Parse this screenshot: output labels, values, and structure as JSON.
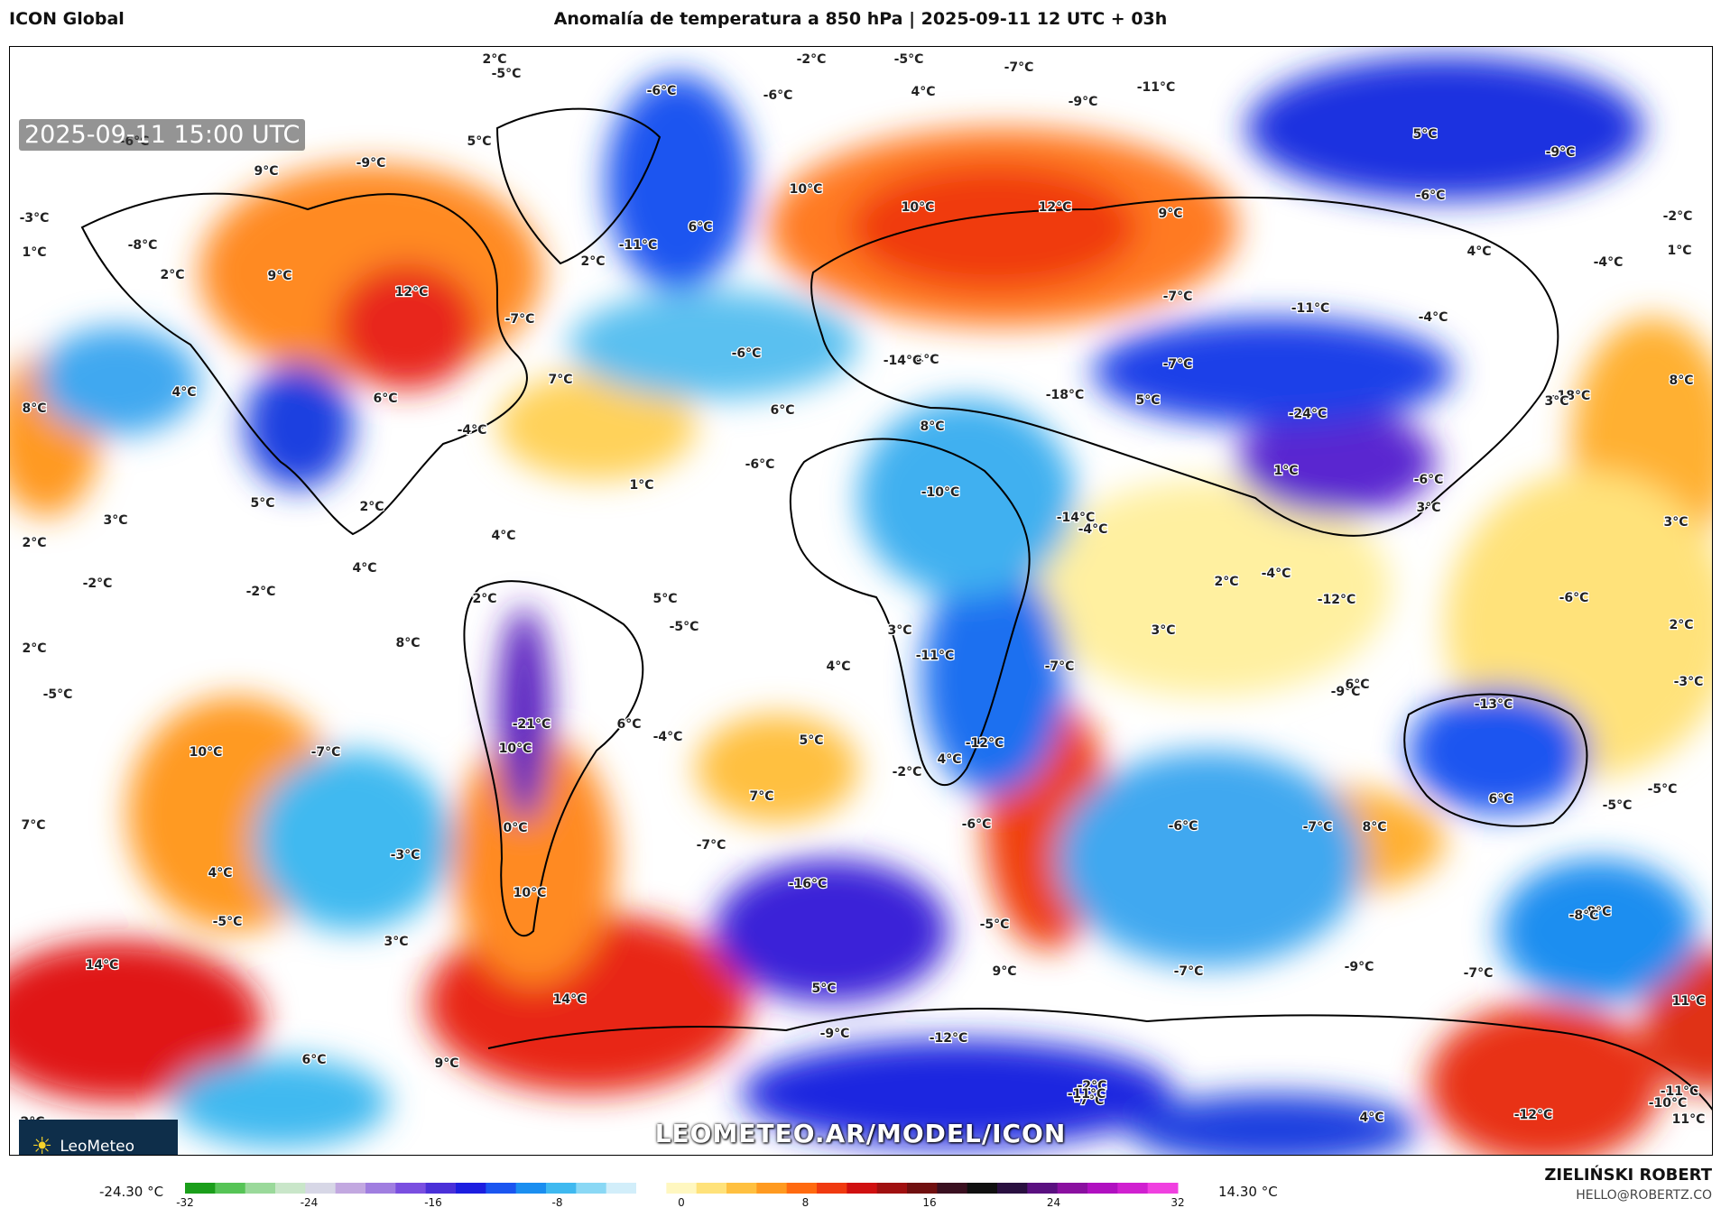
{
  "header": {
    "model": "ICON Global",
    "title": "Anomalía de temperatura a 850 hPa | 2025-09-11 12 UTC + 03h"
  },
  "map": {
    "valid_time": "2025-09-11 15:00 UTC",
    "watermark": "LEOMETEO.AR/MODEL/ICON",
    "logo": "LeoMeteo",
    "labels": [
      {
        "t": "2°C"
      },
      {
        "t": "-2°C"
      },
      {
        "t": "-5°C"
      },
      {
        "t": "-7°C"
      },
      {
        "t": "-11°C"
      },
      {
        "t": "-5°C"
      },
      {
        "t": "-6°C"
      },
      {
        "t": "-6°C"
      },
      {
        "t": "4°C"
      },
      {
        "t": "-9°C"
      },
      {
        "t": "5°C"
      },
      {
        "t": "-6°C"
      },
      {
        "t": "5°C"
      },
      {
        "t": "-9°C"
      },
      {
        "t": "9°C"
      },
      {
        "t": "-9°C"
      },
      {
        "t": "10°C"
      },
      {
        "t": "10°C"
      },
      {
        "t": "12°C"
      },
      {
        "t": "9°C"
      },
      {
        "t": "-6°C"
      },
      {
        "t": "-2°C"
      },
      {
        "t": "-3°C"
      },
      {
        "t": "1°C"
      },
      {
        "t": "-8°C"
      },
      {
        "t": "2°C"
      },
      {
        "t": "9°C"
      },
      {
        "t": "12°C"
      },
      {
        "t": "6°C"
      },
      {
        "t": "-11°C"
      },
      {
        "t": "2°C"
      },
      {
        "t": "4°C"
      },
      {
        "t": "-4°C"
      },
      {
        "t": "1°C"
      },
      {
        "t": "-7°C"
      },
      {
        "t": "-7°C"
      },
      {
        "t": "-11°C"
      },
      {
        "t": "-4°C"
      },
      {
        "t": "-6°C"
      },
      {
        "t": "4°C"
      },
      {
        "t": "-7°C"
      },
      {
        "t": "-14°C"
      },
      {
        "t": "7°C"
      },
      {
        "t": "8°C"
      },
      {
        "t": "8°C"
      },
      {
        "t": "4°C"
      },
      {
        "t": "-18°C"
      },
      {
        "t": "6°C"
      },
      {
        "t": "6°C"
      },
      {
        "t": "-18°C"
      },
      {
        "t": "5°C"
      },
      {
        "t": "-24°C"
      },
      {
        "t": "3°C"
      },
      {
        "t": "-4°C"
      },
      {
        "t": "8°C"
      },
      {
        "t": "-6°C"
      },
      {
        "t": "1°C"
      },
      {
        "t": "-10°C"
      },
      {
        "t": "-14°C"
      },
      {
        "t": "1°C"
      },
      {
        "t": "-6°C"
      },
      {
        "t": "5°C"
      },
      {
        "t": "2°C"
      },
      {
        "t": "3°C"
      },
      {
        "t": "4°C"
      },
      {
        "t": "-4°C"
      },
      {
        "t": "3°C"
      },
      {
        "t": "3°C"
      },
      {
        "t": "2°C"
      },
      {
        "t": "-2°C"
      },
      {
        "t": "4°C"
      },
      {
        "t": "2°C"
      },
      {
        "t": "2°C"
      },
      {
        "t": "-2°C"
      },
      {
        "t": "-4°C"
      },
      {
        "t": "-12°C"
      },
      {
        "t": "5°C"
      },
      {
        "t": "-5°C"
      },
      {
        "t": "3°C"
      },
      {
        "t": "3°C"
      },
      {
        "t": "-6°C"
      },
      {
        "t": "2°C"
      },
      {
        "t": "2°C"
      },
      {
        "t": "8°C"
      },
      {
        "t": "-11°C"
      },
      {
        "t": "-7°C"
      },
      {
        "t": "-9°C"
      },
      {
        "t": "6°C"
      },
      {
        "t": "4°C"
      },
      {
        "t": "-3°C"
      },
      {
        "t": "-5°C"
      },
      {
        "t": "-21°C"
      },
      {
        "t": "6°C"
      },
      {
        "t": "-4°C"
      },
      {
        "t": "-12°C"
      },
      {
        "t": "-13°C"
      },
      {
        "t": "5°C"
      },
      {
        "t": "10°C"
      },
      {
        "t": "-7°C"
      },
      {
        "t": "10°C"
      },
      {
        "t": "4°C"
      },
      {
        "t": "-2°C"
      },
      {
        "t": "7°C"
      },
      {
        "t": "-5°C"
      },
      {
        "t": "-5°C"
      },
      {
        "t": "7°C"
      },
      {
        "t": "6°C"
      },
      {
        "t": "0°C"
      },
      {
        "t": "-6°C"
      },
      {
        "t": "-6°C"
      },
      {
        "t": "-7°C"
      },
      {
        "t": "8°C"
      },
      {
        "t": "-3°C"
      },
      {
        "t": "-7°C"
      },
      {
        "t": "-16°C"
      },
      {
        "t": "4°C"
      },
      {
        "t": "10°C"
      },
      {
        "t": "-8°C"
      },
      {
        "t": "-5°C"
      },
      {
        "t": "-5°C"
      },
      {
        "t": "3°C"
      },
      {
        "t": "9°C"
      },
      {
        "t": "-7°C"
      },
      {
        "t": "-9°C"
      },
      {
        "t": "-7°C"
      },
      {
        "t": "14°C"
      },
      {
        "t": "5°C"
      },
      {
        "t": "14°C"
      },
      {
        "t": "11°C"
      },
      {
        "t": "-9°C"
      },
      {
        "t": "-12°C"
      },
      {
        "t": "-8°C"
      },
      {
        "t": "6°C"
      },
      {
        "t": "9°C"
      },
      {
        "t": "-7°C"
      },
      {
        "t": "-2°C"
      },
      {
        "t": "-10°C"
      },
      {
        "t": "-12°C"
      },
      {
        "t": "11°C"
      },
      {
        "t": "-11°C"
      },
      {
        "t": "4°C"
      },
      {
        "t": "2°C"
      },
      {
        "t": "-11°C"
      }
    ]
  },
  "colorbar": {
    "min_label": "-24.30 °C",
    "max_label": "14.30 °C",
    "ticks": [
      "-32",
      "-24",
      "-16",
      "-8",
      "0",
      "8",
      "16",
      "24",
      "32"
    ],
    "colors": [
      "#1a9e1a",
      "#56c456",
      "#9ad99a",
      "#c9e6c9",
      "#d7d7e6",
      "#c2a8e0",
      "#a07ee0",
      "#7a4fe0",
      "#4a30d8",
      "#1c1ee0",
      "#1a55f0",
      "#1a8ef0",
      "#3fb9f0",
      "#8ad8f5",
      "#d2eefa",
      "#ffffff",
      "#fff7c0",
      "#ffe27a",
      "#ffc040",
      "#ff9a20",
      "#ff6a10",
      "#f03a10",
      "#d01010",
      "#a01010",
      "#701010",
      "#3a1020",
      "#101010",
      "#2a1040",
      "#5a1080",
      "#8a10a0",
      "#b010c0",
      "#d020d0",
      "#f040e0"
    ]
  },
  "credits": {
    "author": "ZIELIŃSKI ROBERT",
    "contact": "HELLO@ROBERTZ.CO"
  }
}
